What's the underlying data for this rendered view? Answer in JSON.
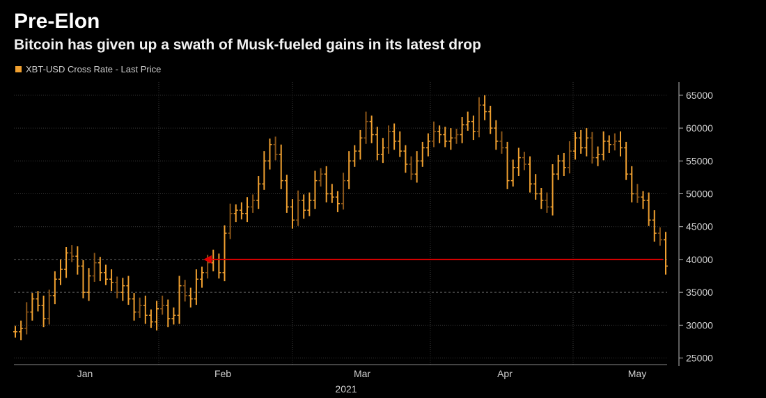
{
  "header": {
    "title": "Pre-Elon",
    "subtitle": "Bitcoin has given up a swath of Musk-fueled gains in its latest drop"
  },
  "legend": {
    "label": "XBT-USD Cross Rate - Last Price",
    "color": "#f0a030"
  },
  "colors": {
    "background": "#000000",
    "bar": "#f0a030",
    "bar_dim": "#8a5518",
    "arrow": "#e00000",
    "grid": "#3a3a3a",
    "axis_text": "#d0d0d0"
  },
  "chart_data": {
    "type": "line",
    "title": "Pre-Elon",
    "subtitle": "Bitcoin has given up a swath of Musk-fueled gains in its latest drop",
    "xlabel": "2021",
    "ylabel": "",
    "ylim": [
      24000,
      67000
    ],
    "y_ticks": [
      25000,
      30000,
      35000,
      40000,
      45000,
      50000,
      55000,
      60000,
      65000
    ],
    "y_tick_labels": [
      "25000",
      "30000",
      "35000",
      "40000",
      "45000",
      "50000",
      "55000",
      "60000",
      "65000"
    ],
    "x_tick_labels": [
      "Jan",
      "Feb",
      "Mar",
      "Apr",
      "May"
    ],
    "x_year_label": "2021",
    "y_axis_side": "right",
    "grid": true,
    "series": [
      {
        "name": "XBT-USD Cross Rate - Last Price",
        "values": [
          29000,
          29500,
          32000,
          34000,
          33000,
          31000,
          34500,
          37000,
          38500,
          41000,
          40500,
          39000,
          35000,
          37500,
          39500,
          38000,
          37000,
          36500,
          35000,
          36000,
          34000,
          32000,
          33000,
          31500,
          30500,
          32500,
          33000,
          31000,
          31500,
          36000,
          34500,
          34000,
          37000,
          38000,
          39500,
          40000,
          38000,
          44000,
          47000,
          47500,
          47000,
          48000,
          49000,
          51500,
          55000,
          57500,
          56000,
          52000,
          48000,
          46000,
          49000,
          47500,
          49000,
          52000,
          53000,
          50000,
          49500,
          48500,
          52000,
          55000,
          56500,
          58500,
          61000,
          59000,
          56000,
          57000,
          59500,
          58000,
          56500,
          54500,
          53000,
          55000,
          57000,
          58000,
          59500,
          59000,
          58000,
          58500,
          59000,
          60500,
          61000,
          59500,
          63500,
          62500,
          60000,
          58000,
          57000,
          52000,
          54000,
          55500,
          54500,
          51500,
          50000,
          49000,
          48000,
          53000,
          55000,
          54000,
          56500,
          58500,
          57000,
          58500,
          55500,
          56000,
          58000,
          57500,
          58000,
          57000,
          53000,
          50000,
          49500,
          49000,
          46000,
          44000,
          43000,
          39000
        ]
      }
    ],
    "annotations": [
      {
        "type": "arrow",
        "from_value": 40000,
        "to_value": 40000,
        "color": "#e00000",
        "description": "horizontal red arrow at 40000 pointing back to late January level"
      }
    ]
  }
}
